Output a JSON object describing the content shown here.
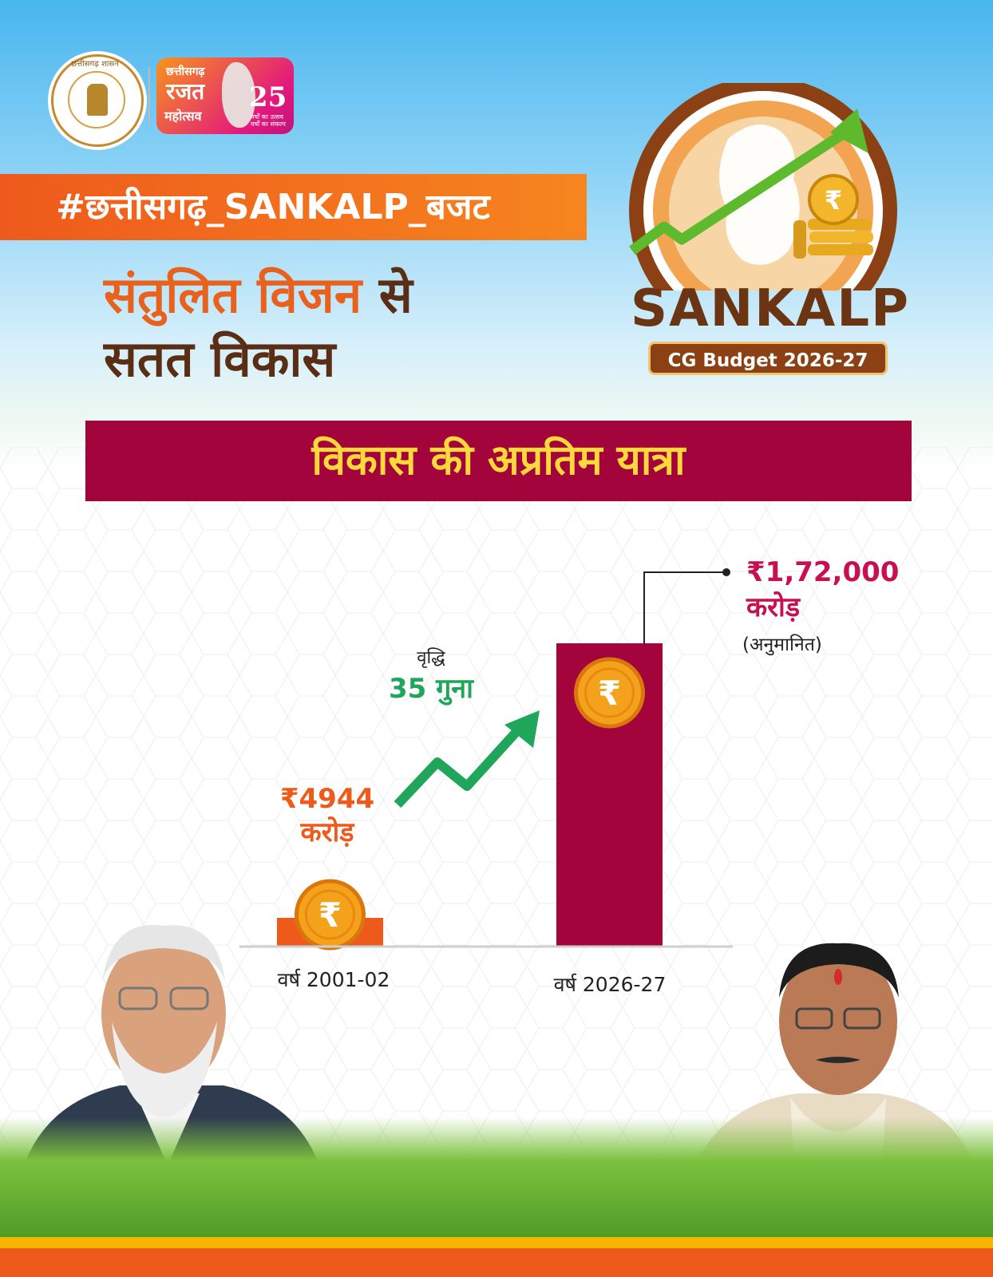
{
  "header": {
    "seal_text": "छत्तीसगढ़ शासन",
    "rajat": {
      "line1": "छत्तीसगढ़",
      "line2": "रजत",
      "line3": "महोत्सव",
      "number": "25",
      "tagline": "वर्षों का उत्सव वर्षों का संकल्प"
    }
  },
  "hashtag": "#छत्तीसगढ़_SANKALP_बजट",
  "headline": {
    "part1": "संतुलित विजन",
    "part2": "से",
    "line2": "सतत विकास"
  },
  "sankalp_logo": {
    "title": "SANKALP",
    "subtitle": "CG Budget 2026-27"
  },
  "section_title": "विकास की अप्रतिम यात्रा",
  "colors": {
    "maroon": "#a3043c",
    "orange": "#ee5a1c",
    "green": "#1fa65a",
    "yellow": "#ffd93b",
    "coin": "#f4a21c"
  },
  "chart_data": {
    "type": "bar",
    "categories": [
      "वर्ष 2001-02",
      "वर्ष 2026-27"
    ],
    "values": [
      4944,
      172000
    ],
    "value_labels": [
      {
        "amount": "₹4944",
        "unit": "करोड़"
      },
      {
        "amount": "₹1,72,000",
        "unit": "करोड़",
        "note": "(अनुमानित)"
      }
    ],
    "bar_colors": [
      "#ee5a1c",
      "#a3043c"
    ],
    "growth": {
      "title": "वृद्धि",
      "value": "35 गुना"
    },
    "ylim": [
      0,
      172000
    ],
    "icons": [
      "rupee-coin-icon",
      "growth-arrow-icon"
    ]
  }
}
